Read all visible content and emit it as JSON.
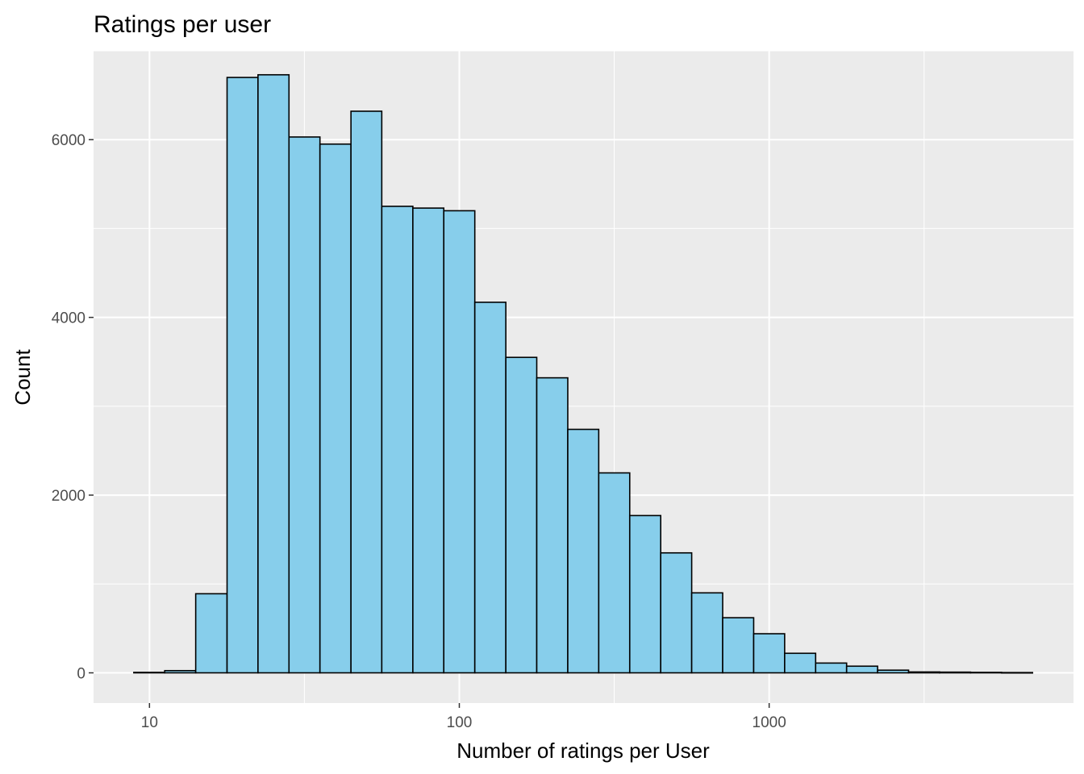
{
  "chart_data": {
    "type": "bar",
    "title": "Ratings per user",
    "xlabel": "Number of ratings per User",
    "ylabel": "Count",
    "x_scale": "log10",
    "x_ticks": [
      10,
      100,
      1000
    ],
    "x_tick_labels": [
      "10",
      "100",
      "1000"
    ],
    "y_ticks": [
      0,
      2000,
      4000,
      6000
    ],
    "y_tick_labels": [
      "0",
      "2000",
      "4000",
      "6000"
    ],
    "ylim": [
      -340,
      7000
    ],
    "xlim": [
      6.6,
      9600
    ],
    "grid": true,
    "bar_fill": "#87CEEB",
    "bar_outline": "#000000",
    "panel_background": "#EBEBEB",
    "bins": [
      {
        "x_start": 8.9,
        "x_end": 11.2,
        "count": 5
      },
      {
        "x_start": 11.2,
        "x_end": 14.1,
        "count": 25
      },
      {
        "x_start": 14.1,
        "x_end": 17.8,
        "count": 890
      },
      {
        "x_start": 17.8,
        "x_end": 22.4,
        "count": 6700
      },
      {
        "x_start": 22.4,
        "x_end": 28.2,
        "count": 6730
      },
      {
        "x_start": 28.2,
        "x_end": 35.5,
        "count": 6030
      },
      {
        "x_start": 35.5,
        "x_end": 44.7,
        "count": 5950
      },
      {
        "x_start": 44.7,
        "x_end": 56.2,
        "count": 6320
      },
      {
        "x_start": 56.2,
        "x_end": 70.8,
        "count": 5250
      },
      {
        "x_start": 70.8,
        "x_end": 89.1,
        "count": 5230
      },
      {
        "x_start": 89.1,
        "x_end": 112.2,
        "count": 5200
      },
      {
        "x_start": 112.2,
        "x_end": 141.3,
        "count": 4170
      },
      {
        "x_start": 141.3,
        "x_end": 177.8,
        "count": 3550
      },
      {
        "x_start": 177.8,
        "x_end": 223.9,
        "count": 3320
      },
      {
        "x_start": 223.9,
        "x_end": 281.8,
        "count": 2740
      },
      {
        "x_start": 281.8,
        "x_end": 354.8,
        "count": 2250
      },
      {
        "x_start": 354.8,
        "x_end": 446.7,
        "count": 1770
      },
      {
        "x_start": 446.7,
        "x_end": 562.3,
        "count": 1350
      },
      {
        "x_start": 562.3,
        "x_end": 707.9,
        "count": 900
      },
      {
        "x_start": 707.9,
        "x_end": 891.3,
        "count": 620
      },
      {
        "x_start": 891.3,
        "x_end": 1122.0,
        "count": 440
      },
      {
        "x_start": 1122.0,
        "x_end": 1412.5,
        "count": 220
      },
      {
        "x_start": 1412.5,
        "x_end": 1778.3,
        "count": 110
      },
      {
        "x_start": 1778.3,
        "x_end": 2238.7,
        "count": 75
      },
      {
        "x_start": 2238.7,
        "x_end": 2818.4,
        "count": 30
      },
      {
        "x_start": 2818.4,
        "x_end": 3548.1,
        "count": 10
      },
      {
        "x_start": 3548.1,
        "x_end": 4466.8,
        "count": 8
      },
      {
        "x_start": 4466.8,
        "x_end": 5623.4,
        "count": 5
      },
      {
        "x_start": 5623.4,
        "x_end": 7079.5,
        "count": 3
      }
    ]
  }
}
